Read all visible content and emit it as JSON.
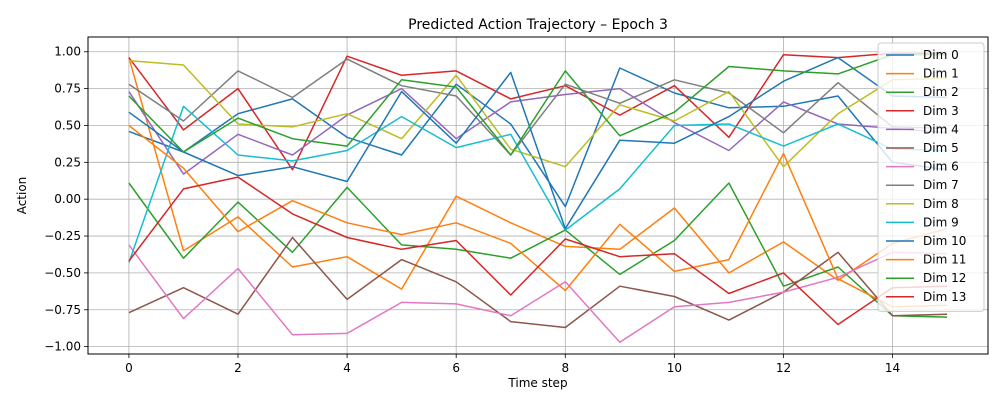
{
  "chart_data": {
    "type": "line",
    "title": "Predicted Action Trajectory – Epoch 3",
    "xlabel": "Time step",
    "ylabel": "Action",
    "xlim": [
      -0.75,
      15.75
    ],
    "ylim": [
      -1.05,
      1.1
    ],
    "xticks": [
      0,
      2,
      4,
      6,
      8,
      10,
      12,
      14
    ],
    "yticks": [
      -1.0,
      -0.75,
      -0.5,
      -0.25,
      0.0,
      0.25,
      0.5,
      0.75,
      1.0
    ],
    "ytick_labels": [
      "−1.00",
      "−0.75",
      "−0.50",
      "−0.25",
      "0.00",
      "0.25",
      "0.50",
      "0.75",
      "1.00"
    ],
    "grid": true,
    "legend_position": "right",
    "x": [
      0,
      1,
      2,
      3,
      4,
      5,
      6,
      7,
      8,
      9,
      10,
      11,
      12,
      13,
      14,
      15
    ],
    "series": [
      {
        "name": "Dim 0",
        "color": "#1f77b4",
        "values": [
          0.46,
          0.32,
          0.58,
          0.68,
          0.42,
          0.3,
          0.78,
          0.51,
          -0.05,
          0.89,
          0.72,
          0.62,
          0.63,
          0.7,
          0.25,
          0.2
        ]
      },
      {
        "name": "Dim 1",
        "color": "#ff7f0e",
        "values": [
          0.96,
          -0.35,
          -0.12,
          -0.46,
          -0.39,
          -0.61,
          0.02,
          -0.16,
          -0.32,
          -0.34,
          -0.06,
          -0.5,
          -0.29,
          -0.55,
          -0.3,
          -0.2
        ]
      },
      {
        "name": "Dim 2",
        "color": "#2ca02c",
        "values": [
          0.11,
          -0.4,
          -0.02,
          -0.36,
          0.08,
          -0.31,
          -0.34,
          -0.4,
          -0.21,
          -0.51,
          -0.28,
          0.11,
          -0.59,
          -0.46,
          -0.79,
          -0.8
        ]
      },
      {
        "name": "Dim 3",
        "color": "#d62728",
        "values": [
          0.96,
          0.47,
          0.75,
          0.2,
          0.97,
          0.84,
          0.87,
          0.68,
          0.77,
          0.57,
          0.77,
          0.42,
          0.98,
          0.96,
          0.99,
          0.99
        ]
      },
      {
        "name": "Dim 4",
        "color": "#9467bd",
        "values": [
          0.73,
          0.17,
          0.44,
          0.3,
          0.57,
          0.75,
          0.41,
          0.66,
          0.71,
          0.75,
          0.52,
          0.33,
          0.66,
          0.51,
          0.48,
          0.45
        ]
      },
      {
        "name": "Dim 5",
        "color": "#8c564b",
        "values": [
          -0.77,
          -0.6,
          -0.78,
          -0.26,
          -0.68,
          -0.41,
          -0.56,
          -0.83,
          -0.87,
          -0.59,
          -0.66,
          -0.82,
          -0.63,
          -0.36,
          -0.79,
          -0.78
        ]
      },
      {
        "name": "Dim 6",
        "color": "#e377c2",
        "values": [
          -0.31,
          -0.81,
          -0.47,
          -0.92,
          -0.91,
          -0.7,
          -0.71,
          -0.79,
          -0.56,
          -0.97,
          -0.73,
          -0.7,
          -0.63,
          -0.53,
          -0.36,
          -0.37
        ]
      },
      {
        "name": "Dim 7",
        "color": "#7f7f7f",
        "values": [
          0.78,
          0.53,
          0.87,
          0.69,
          0.95,
          0.77,
          0.7,
          0.3,
          0.78,
          0.65,
          0.81,
          0.72,
          0.45,
          0.79,
          0.49,
          0.48
        ]
      },
      {
        "name": "Dim 8",
        "color": "#bcbd22",
        "values": [
          0.94,
          0.91,
          0.51,
          0.49,
          0.58,
          0.41,
          0.84,
          0.34,
          0.22,
          0.64,
          0.53,
          0.73,
          0.22,
          0.58,
          0.81,
          0.82
        ]
      },
      {
        "name": "Dim 9",
        "color": "#17becf",
        "values": [
          -0.43,
          0.63,
          0.3,
          0.26,
          0.33,
          0.56,
          0.35,
          0.44,
          -0.21,
          0.07,
          0.5,
          0.51,
          0.36,
          0.51,
          0.34,
          0.33
        ]
      },
      {
        "name": "Dim 10",
        "color": "#1f77b4",
        "values": [
          0.59,
          0.32,
          0.16,
          0.22,
          0.12,
          0.73,
          0.38,
          0.86,
          -0.2,
          0.4,
          0.38,
          0.56,
          0.8,
          0.96,
          0.7,
          0.69
        ]
      },
      {
        "name": "Dim 11",
        "color": "#ff7f0e",
        "values": [
          0.5,
          0.21,
          -0.22,
          -0.01,
          -0.16,
          -0.24,
          -0.16,
          -0.3,
          -0.62,
          -0.17,
          -0.49,
          -0.41,
          0.31,
          -0.54,
          -0.73,
          -0.72
        ]
      },
      {
        "name": "Dim 12",
        "color": "#2ca02c",
        "values": [
          0.7,
          0.32,
          0.55,
          0.41,
          0.36,
          0.81,
          0.76,
          0.3,
          0.87,
          0.43,
          0.59,
          0.9,
          0.87,
          0.85,
          0.98,
          0.98
        ]
      },
      {
        "name": "Dim 13",
        "color": "#d62728",
        "values": [
          -0.42,
          0.07,
          0.15,
          -0.1,
          -0.26,
          -0.34,
          -0.28,
          -0.65,
          -0.27,
          -0.39,
          -0.37,
          -0.64,
          -0.5,
          -0.85,
          -0.6,
          -0.59
        ]
      }
    ]
  }
}
